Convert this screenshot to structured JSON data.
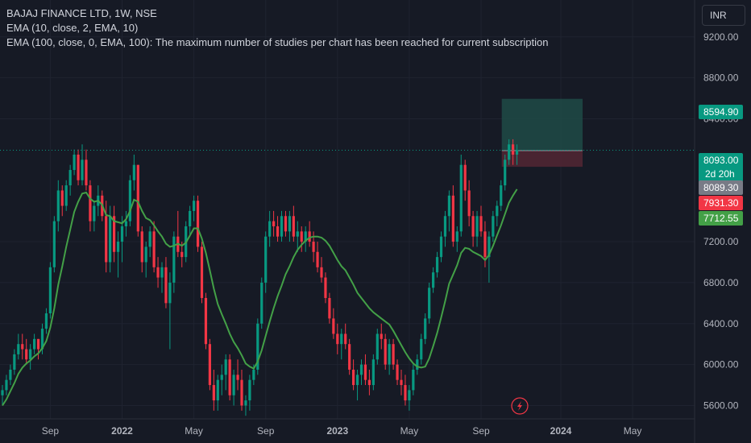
{
  "legend": {
    "title": "BAJAJ FINANCE LTD, 1W, NSE",
    "ema10": "EMA (10, close, 2, EMA, 10)",
    "ema100": "EMA (100, close, 0, EMA, 100): The maximum number of studies per chart has been reached for current subscription"
  },
  "currency": "INR",
  "colors": {
    "background": "#161a25",
    "up": "#089981",
    "down": "#f23645",
    "ema": "#43a047",
    "last_price_line": "#089981",
    "target_zone": "#1f4b46",
    "stop_zone": "#4f2633"
  },
  "price_tags": [
    {
      "value": "8594.90",
      "bg": "#089981",
      "fg": "#ffffff"
    },
    {
      "value": "8093.00",
      "bg": "#089981",
      "fg": "#ffffff",
      "sub": "2d 20h"
    },
    {
      "value": "8089.30",
      "bg": "#787b86",
      "fg": "#ffffff"
    },
    {
      "value": "7931.30",
      "bg": "#f23645",
      "fg": "#ffffff"
    },
    {
      "value": "7712.55",
      "bg": "#43a047",
      "fg": "#ffffff"
    }
  ],
  "chart_data": {
    "type": "candlestick",
    "timeframe": "1W",
    "yticks": [
      "5600.00",
      "6000.00",
      "6400.00",
      "6800.00",
      "7200.00",
      "8400.00",
      "8800.00",
      "9200.00"
    ],
    "ylim": [
      5470,
      9560
    ],
    "xticks": [
      "Sep",
      "2022",
      "May",
      "Sep",
      "2023",
      "May",
      "Sep",
      "2024",
      "May"
    ],
    "ohlc": [
      [
        5700,
        5800,
        5600,
        5750
      ],
      [
        5750,
        5900,
        5700,
        5850
      ],
      [
        5850,
        6000,
        5800,
        5950
      ],
      [
        5950,
        6150,
        5900,
        6100
      ],
      [
        6100,
        6300,
        6050,
        6200
      ],
      [
        6200,
        6300,
        6050,
        6150
      ],
      [
        6150,
        6250,
        6000,
        6050
      ],
      [
        6050,
        6200,
        5950,
        6150
      ],
      [
        6150,
        6300,
        6100,
        6250
      ],
      [
        6250,
        6250,
        6050,
        6150
      ],
      [
        6150,
        6400,
        6100,
        6350
      ],
      [
        6350,
        6550,
        6300,
        6500
      ],
      [
        6500,
        7000,
        6450,
        6950
      ],
      [
        6950,
        7450,
        6900,
        7400
      ],
      [
        7400,
        7800,
        7300,
        7700
      ],
      [
        7700,
        7750,
        7450,
        7550
      ],
      [
        7550,
        7800,
        7500,
        7750
      ],
      [
        7750,
        7950,
        7650,
        7900
      ],
      [
        7900,
        8100,
        7850,
        8050
      ],
      [
        8050,
        8100,
        7750,
        7800
      ],
      [
        7800,
        8150,
        7750,
        8000
      ],
      [
        8000,
        8100,
        7700,
        7750
      ],
      [
        7750,
        7800,
        7300,
        7400
      ],
      [
        7400,
        7600,
        7300,
        7550
      ],
      [
        7550,
        7750,
        7450,
        7650
      ],
      [
        7650,
        7700,
        7400,
        7450
      ],
      [
        7450,
        7600,
        6900,
        7000
      ],
      [
        7000,
        7550,
        6900,
        7450
      ],
      [
        7450,
        7550,
        7000,
        7100
      ],
      [
        7100,
        7300,
        6850,
        7200
      ],
      [
        7200,
        7450,
        7000,
        7350
      ],
      [
        7350,
        7500,
        7250,
        7400
      ],
      [
        7400,
        7850,
        7350,
        7800
      ],
      [
        7800,
        8050,
        7700,
        7950
      ],
      [
        7950,
        7950,
        7250,
        7300
      ],
      [
        7300,
        7350,
        6900,
        7000
      ],
      [
        7000,
        7200,
        6850,
        7150
      ],
      [
        7150,
        7350,
        7050,
        7300
      ],
      [
        7300,
        7400,
        6900,
        6950
      ],
      [
        6950,
        7050,
        6750,
        6850
      ],
      [
        6850,
        7000,
        6700,
        6950
      ],
      [
        6950,
        7050,
        6550,
        6600
      ],
      [
        6600,
        6900,
        6150,
        6800
      ],
      [
        6800,
        7300,
        6700,
        7250
      ],
      [
        7250,
        7500,
        7050,
        7100
      ],
      [
        7100,
        7200,
        6950,
        7050
      ],
      [
        7050,
        7400,
        7000,
        7350
      ],
      [
        7350,
        7550,
        7250,
        7500
      ],
      [
        7500,
        7650,
        7400,
        7600
      ],
      [
        7600,
        7650,
        7100,
        7150
      ],
      [
        7150,
        7200,
        6600,
        6650
      ],
      [
        6650,
        6700,
        6150,
        6200
      ],
      [
        6200,
        6250,
        5750,
        5800
      ],
      [
        5800,
        5950,
        5550,
        5650
      ],
      [
        5650,
        5900,
        5550,
        5850
      ],
      [
        5850,
        6000,
        5700,
        5900
      ],
      [
        5900,
        6100,
        5750,
        6050
      ],
      [
        6050,
        6100,
        5650,
        5700
      ],
      [
        5700,
        5950,
        5600,
        5900
      ],
      [
        5900,
        6050,
        5750,
        5850
      ],
      [
        5850,
        5950,
        5550,
        5600
      ],
      [
        5600,
        5700,
        5500,
        5650
      ],
      [
        5650,
        5900,
        5550,
        5850
      ],
      [
        5850,
        6000,
        5800,
        5950
      ],
      [
        5950,
        6450,
        5900,
        6400
      ],
      [
        6400,
        6850,
        6350,
        6800
      ],
      [
        6800,
        7300,
        6700,
        7250
      ],
      [
        7250,
        7500,
        7150,
        7400
      ],
      [
        7400,
        7500,
        7250,
        7350
      ],
      [
        7350,
        7450,
        7200,
        7250
      ],
      [
        7250,
        7500,
        7200,
        7450
      ],
      [
        7450,
        7500,
        7250,
        7300
      ],
      [
        7300,
        7500,
        7200,
        7450
      ],
      [
        7450,
        7550,
        7200,
        7250
      ],
      [
        7250,
        7400,
        7100,
        7300
      ],
      [
        7300,
        7350,
        7100,
        7200
      ],
      [
        7200,
        7350,
        7100,
        7300
      ],
      [
        7300,
        7400,
        7150,
        7200
      ],
      [
        7200,
        7300,
        7000,
        7100
      ],
      [
        7100,
        7200,
        6900,
        6950
      ],
      [
        6950,
        7050,
        6800,
        6850
      ],
      [
        6850,
        6900,
        6600,
        6650
      ],
      [
        6650,
        6700,
        6400,
        6450
      ],
      [
        6450,
        6550,
        6250,
        6300
      ],
      [
        6300,
        6400,
        6100,
        6200
      ],
      [
        6200,
        6350,
        6050,
        6300
      ],
      [
        6300,
        6400,
        6150,
        6200
      ],
      [
        6200,
        6250,
        5900,
        5950
      ],
      [
        5950,
        6050,
        5750,
        5800
      ],
      [
        5800,
        5950,
        5650,
        5900
      ],
      [
        5900,
        6050,
        5800,
        6000
      ],
      [
        6000,
        6100,
        5800,
        5850
      ],
      [
        5850,
        5950,
        5700,
        5800
      ],
      [
        5800,
        6100,
        5750,
        6050
      ],
      [
        6050,
        6350,
        6000,
        6300
      ],
      [
        6300,
        6400,
        6150,
        6250
      ],
      [
        6250,
        6300,
        5950,
        6000
      ],
      [
        6000,
        6250,
        5900,
        6200
      ],
      [
        6200,
        6250,
        5950,
        6000
      ],
      [
        6000,
        6050,
        5800,
        5850
      ],
      [
        5850,
        5950,
        5700,
        5800
      ],
      [
        5800,
        5900,
        5600,
        5650
      ],
      [
        5650,
        5800,
        5550,
        5750
      ],
      [
        5750,
        6000,
        5700,
        5950
      ],
      [
        5950,
        6100,
        5900,
        6050
      ],
      [
        6050,
        6300,
        6000,
        6250
      ],
      [
        6250,
        6500,
        6200,
        6450
      ],
      [
        6450,
        6800,
        6400,
        6750
      ],
      [
        6750,
        6950,
        6700,
        6900
      ],
      [
        6900,
        7100,
        6850,
        7050
      ],
      [
        7050,
        7300,
        7000,
        7250
      ],
      [
        7250,
        7500,
        7150,
        7450
      ],
      [
        7450,
        7700,
        7300,
        7650
      ],
      [
        7650,
        7750,
        7150,
        7200
      ],
      [
        7200,
        7350,
        7100,
        7300
      ],
      [
        7300,
        8050,
        7250,
        7950
      ],
      [
        7950,
        8000,
        7600,
        7700
      ],
      [
        7700,
        7800,
        7350,
        7450
      ],
      [
        7450,
        7500,
        7150,
        7250
      ],
      [
        7250,
        7500,
        7150,
        7450
      ],
      [
        7450,
        7550,
        7250,
        7300
      ],
      [
        7300,
        7400,
        6950,
        7050
      ],
      [
        7050,
        7300,
        6800,
        7250
      ],
      [
        7250,
        7500,
        7200,
        7450
      ],
      [
        7450,
        7600,
        7350,
        7550
      ],
      [
        7550,
        7800,
        7500,
        7750
      ],
      [
        7750,
        8050,
        7700,
        8000
      ],
      [
        8000,
        8200,
        7950,
        8150
      ],
      [
        8150,
        8200,
        7950,
        8050
      ],
      [
        8050,
        8150,
        7950,
        8093
      ]
    ],
    "ema10": [
      5600,
      5660,
      5740,
      5820,
      5910,
      5970,
      6010,
      6040,
      6080,
      6110,
      6160,
      6230,
      6360,
      6550,
      6780,
      6960,
      7150,
      7320,
      7490,
      7590,
      7670,
      7680,
      7620,
      7590,
      7600,
      7560,
      7460,
      7450,
      7400,
      7390,
      7380,
      7420,
      7500,
      7610,
      7590,
      7500,
      7430,
      7410,
      7360,
      7300,
      7250,
      7180,
      7150,
      7160,
      7180,
      7160,
      7190,
      7260,
      7330,
      7330,
      7230,
      7090,
      6920,
      6740,
      6590,
      6490,
      6400,
      6300,
      6220,
      6160,
      6090,
      6010,
      5980,
      5960,
      6030,
      6140,
      6280,
      6420,
      6550,
      6670,
      6770,
      6880,
      6960,
      7050,
      7120,
      7170,
      7210,
      7240,
      7250,
      7250,
      7240,
      7210,
      7160,
      7090,
      7020,
      6960,
      6920,
      6850,
      6780,
      6700,
      6650,
      6600,
      6550,
      6510,
      6480,
      6450,
      6420,
      6390,
      6330,
      6260,
      6190,
      6120,
      6060,
      6010,
      5980,
      5970,
      5980,
      6060,
      6180,
      6310,
      6460,
      6620,
      6790,
      6880,
      6970,
      7090,
      7140,
      7130,
      7100,
      7080,
      7060,
      7020,
      7070,
      7160,
      7260,
      7360,
      7470,
      7580,
      7650,
      7712.55
    ],
    "last_price": 8093.0,
    "countdown": "2d 20h",
    "position": {
      "target": 8594.9,
      "entry": 8089.3,
      "stop": 7931.3
    }
  }
}
